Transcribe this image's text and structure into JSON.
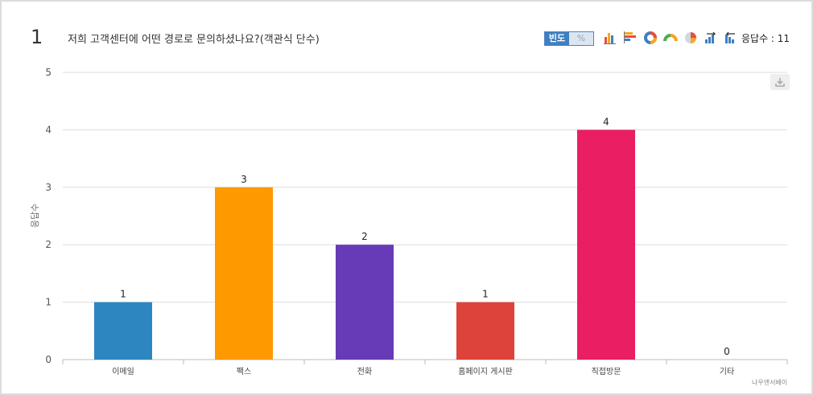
{
  "question": {
    "number": "1",
    "title": "저희 고객센터에 어떤 경로로 문의하셨나요?(객관식 단수)"
  },
  "toolbar": {
    "freq_label": "빈도",
    "percent_label": "%",
    "chart_icons": [
      "bar-chart-icon",
      "horizontal-bar-icon",
      "donut-chart-icon",
      "half-donut-icon",
      "pie-chart-icon",
      "sort-ascending-icon",
      "sort-descending-icon"
    ],
    "responses_label": "응답수 : 11"
  },
  "watermark": "나우앤서베이",
  "colors": {
    "grid": "#dddddd",
    "axis": "#bbbbbb",
    "bars": [
      "#2e86c1",
      "#ff9900",
      "#673ab7",
      "#de433b",
      "#e91e63",
      "#9e9e9e"
    ]
  },
  "chart_data": {
    "type": "bar",
    "categories": [
      "이메일",
      "팩스",
      "전화",
      "홈페이지 게시판",
      "직접방문",
      "기타"
    ],
    "values": [
      1,
      3,
      2,
      1,
      4,
      0
    ],
    "data_labels": [
      "1",
      "3",
      "2",
      "1",
      "4",
      "0"
    ],
    "ylabel": "응답수",
    "ylim": [
      0,
      5
    ],
    "yticks": [
      "0",
      "1",
      "2",
      "3",
      "4",
      "5"
    ],
    "grid": true,
    "legend": "none"
  }
}
